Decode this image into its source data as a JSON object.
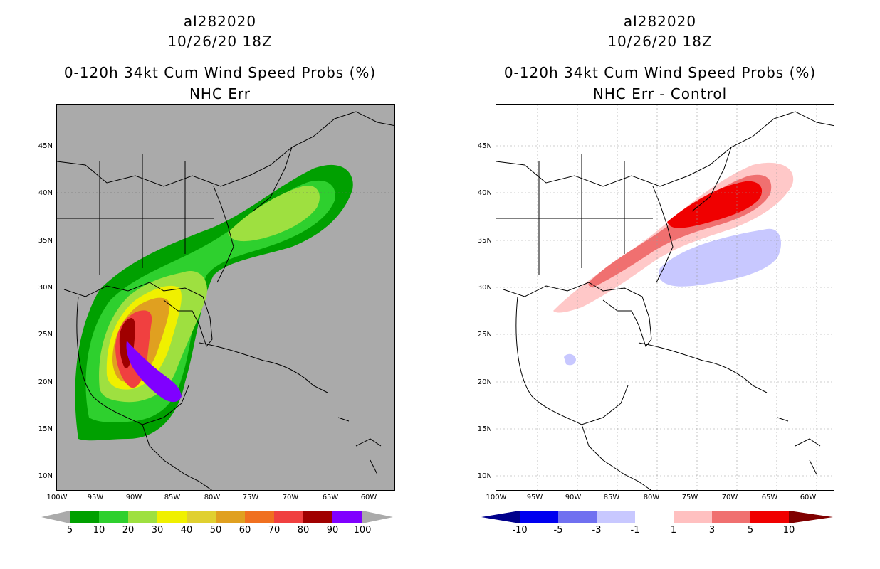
{
  "left_panel": {
    "title_line1": "al282020",
    "title_line2": "10/26/20 18Z",
    "title_line3": "0-120h 34kt Cum Wind Speed Probs (%)",
    "title_line4": "NHC Err",
    "colorbar_labels": [
      "5",
      "10",
      "20",
      "30",
      "40",
      "50",
      "60",
      "70",
      "80",
      "90",
      "100"
    ],
    "colorbar_colors": [
      "#00a000",
      "#2ed02e",
      "#9ee040",
      "#f0f000",
      "#e0d030",
      "#e0a020",
      "#f07020",
      "#f04040",
      "#a00000",
      "#8000ff"
    ],
    "map_background": "#aaaaaa"
  },
  "right_panel": {
    "title_line1": "al282020",
    "title_line2": "10/26/20 18Z",
    "title_line3": "0-120h 34kt Cum Wind Speed Probs (%)",
    "title_line4": "NHC Err - Control",
    "colorbar_labels": [
      "-10",
      "-5",
      "-3",
      "-1",
      "1",
      "3",
      "5",
      "10"
    ],
    "colorbar_colors": [
      "#0000c0",
      "#0000f0",
      "#7070f0",
      "#c8c8ff",
      "#ffffff",
      "#ffc0c0",
      "#f07070",
      "#f00000"
    ],
    "colorbar_end_low": "#00008b",
    "colorbar_end_high": "#800000",
    "map_background": "#ffffff"
  },
  "axes": {
    "lat_labels": [
      "45N",
      "40N",
      "35N",
      "30N",
      "25N",
      "20N",
      "15N",
      "10N"
    ],
    "lon_labels": [
      "100W",
      "95W",
      "90W",
      "85W",
      "80W",
      "75W",
      "70W",
      "65W",
      "60W"
    ]
  }
}
